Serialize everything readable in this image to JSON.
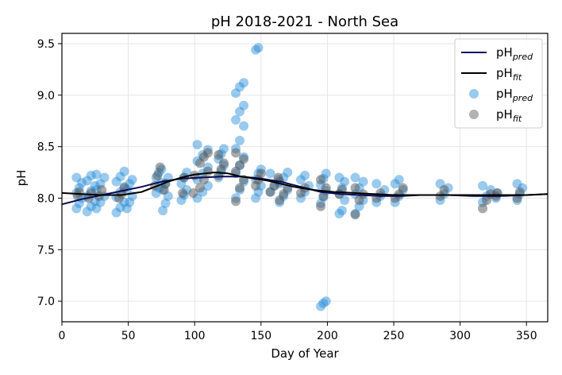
{
  "chart_data": {
    "type": "scatter",
    "title": "pH 2018-2021 - North Sea",
    "xlabel": "Day of Year",
    "ylabel": "pH",
    "xlim": [
      0,
      366
    ],
    "ylim": [
      6.8,
      9.6
    ],
    "xticks": [
      0,
      50,
      100,
      150,
      200,
      250,
      300,
      350
    ],
    "yticks": [
      7.0,
      7.5,
      8.0,
      8.5,
      9.0,
      9.5
    ],
    "ytick_labels": [
      "7.0",
      "7.5",
      "8.0",
      "8.5",
      "9.0",
      "9.5"
    ],
    "grid": true,
    "legend_position": "top-right",
    "legend": [
      {
        "base": "pH",
        "sub": "pred",
        "kind": "line",
        "color": "#0a0a5a"
      },
      {
        "base": "pH",
        "sub": "fit",
        "kind": "line",
        "color": "#000000"
      },
      {
        "base": "pH",
        "sub": "pred",
        "kind": "marker",
        "color": "#1f8ad6"
      },
      {
        "base": "pH",
        "sub": "fit",
        "kind": "marker",
        "color": "#555555"
      }
    ],
    "colors": {
      "pred_points": "#1f8ad6",
      "fit_points": "#555555",
      "pred_line": "#0a0a5a",
      "fit_line": "#000000"
    },
    "pred_line": {
      "x": [
        0,
        15,
        30,
        45,
        60,
        75,
        90,
        105,
        120,
        135,
        150,
        165,
        180,
        195,
        210,
        225,
        240,
        255,
        270,
        290,
        310,
        330,
        350,
        366
      ],
      "y": [
        7.94,
        7.99,
        8.03,
        8.07,
        8.11,
        8.16,
        8.19,
        8.2,
        8.21,
        8.21,
        8.19,
        8.16,
        8.11,
        8.06,
        8.04,
        8.03,
        8.02,
        8.02,
        8.03,
        8.03,
        8.02,
        8.02,
        8.03,
        8.04
      ]
    },
    "fit_line": {
      "x": [
        0,
        15,
        30,
        45,
        60,
        72,
        80,
        90,
        100,
        108,
        115,
        125,
        135,
        145,
        155,
        165,
        175,
        190,
        205,
        220,
        235,
        250,
        270,
        290,
        310,
        330,
        350,
        366
      ],
      "y": [
        8.05,
        8.04,
        8.03,
        8.03,
        8.06,
        8.12,
        8.16,
        8.2,
        8.23,
        8.24,
        8.25,
        8.24,
        8.21,
        8.19,
        8.17,
        8.14,
        8.11,
        8.08,
        8.06,
        8.05,
        8.04,
        8.03,
        8.03,
        8.03,
        8.03,
        8.03,
        8.03,
        8.04
      ]
    },
    "pred_clusters": [
      {
        "day": 13,
        "ys": [
          7.9,
          7.95,
          8.0,
          8.05,
          8.1,
          8.15,
          8.2
        ],
        "spread": 2
      },
      {
        "day": 22,
        "ys": [
          7.87,
          7.92,
          7.97,
          8.02,
          8.07,
          8.12,
          8.17,
          8.22
        ],
        "spread": 3
      },
      {
        "day": 29,
        "ys": [
          7.9,
          7.96,
          8.02,
          8.08,
          8.14,
          8.2,
          8.23
        ],
        "spread": 3
      },
      {
        "day": 44,
        "ys": [
          7.86,
          7.91,
          7.96,
          8.01,
          8.06,
          8.11,
          8.16,
          8.21,
          8.26
        ],
        "spread": 3
      },
      {
        "day": 51,
        "ys": [
          7.9,
          7.96,
          8.02,
          8.08,
          8.14,
          8.18
        ],
        "spread": 2
      },
      {
        "day": 73,
        "ys": [
          8.05,
          8.1,
          8.15,
          8.2,
          8.25,
          8.28
        ],
        "spread": 2
      },
      {
        "day": 78,
        "ys": [
          7.88,
          7.95,
          8.02,
          8.08,
          8.14,
          8.2
        ],
        "spread": 2
      },
      {
        "day": 92,
        "ys": [
          7.98,
          8.03,
          8.08,
          8.14,
          8.2,
          8.25
        ],
        "spread": 2
      },
      {
        "day": 106,
        "ys": [
          8.0,
          8.06,
          8.12,
          8.18,
          8.24,
          8.3,
          8.36,
          8.42,
          8.47,
          8.52
        ],
        "spread": 4
      },
      {
        "day": 120,
        "ys": [
          8.2,
          8.26,
          8.32,
          8.38,
          8.43,
          8.48
        ],
        "spread": 2
      },
      {
        "day": 134,
        "ys": [
          8.0,
          8.08,
          8.16,
          8.24,
          8.32,
          8.4,
          8.48,
          8.56,
          8.7,
          8.76,
          8.84,
          8.9,
          9.02,
          9.08,
          9.12
        ],
        "spread": 3
      },
      {
        "day": 148,
        "ys": [
          8.0,
          8.06,
          8.12,
          8.18,
          8.24,
          8.28,
          9.44,
          9.46
        ],
        "spread": 2
      },
      {
        "day": 160,
        "ys": [
          8.06,
          8.12,
          8.18,
          8.24
        ],
        "spread": 3
      },
      {
        "day": 167,
        "ys": [
          7.96,
          8.02,
          8.08,
          8.14,
          8.2,
          8.25
        ],
        "spread": 3
      },
      {
        "day": 183,
        "ys": [
          8.0,
          8.06,
          8.12,
          8.18,
          8.22
        ],
        "spread": 3
      },
      {
        "day": 197,
        "ys": [
          7.95,
          8.01,
          8.07,
          8.13,
          8.19,
          8.24,
          6.95,
          6.98,
          7.0
        ],
        "spread": 2
      },
      {
        "day": 211,
        "ys": [
          7.85,
          7.88,
          7.98,
          8.04,
          8.1,
          8.16,
          8.2
        ],
        "spread": 2
      },
      {
        "day": 224,
        "ys": [
          7.85,
          7.92,
          7.98,
          8.04,
          8.1,
          8.16,
          8.2
        ],
        "spread": 3
      },
      {
        "day": 240,
        "ys": [
          7.96,
          8.02,
          8.08,
          8.14
        ],
        "spread": 3
      },
      {
        "day": 254,
        "ys": [
          7.96,
          8.02,
          8.08,
          8.14,
          8.18
        ],
        "spread": 3
      },
      {
        "day": 288,
        "ys": [
          7.98,
          8.04,
          8.1,
          8.14
        ],
        "spread": 3
      },
      {
        "day": 320,
        "ys": [
          7.96,
          8.02,
          8.08,
          8.12
        ],
        "spread": 3
      },
      {
        "day": 328,
        "ys": [
          8.0,
          8.05
        ],
        "spread": 1
      },
      {
        "day": 345,
        "ys": [
          7.98,
          8.04,
          8.1,
          8.14
        ],
        "spread": 2
      }
    ],
    "fit_clusters": [
      {
        "day": 13,
        "ys": [
          8.02,
          8.06
        ],
        "spread": 1
      },
      {
        "day": 22,
        "ys": [
          8.0,
          8.05
        ],
        "spread": 2
      },
      {
        "day": 30,
        "ys": [
          8.02,
          8.08
        ],
        "spread": 2
      },
      {
        "day": 45,
        "ys": [
          8.0,
          8.04,
          8.1
        ],
        "spread": 2
      },
      {
        "day": 72,
        "ys": [
          8.12,
          8.22,
          8.3
        ],
        "spread": 2
      },
      {
        "day": 78,
        "ys": [
          8.08,
          8.14
        ],
        "spread": 1
      },
      {
        "day": 92,
        "ys": [
          8.05,
          8.2
        ],
        "spread": 1
      },
      {
        "day": 100,
        "ys": [
          8.05,
          8.22
        ],
        "spread": 1
      },
      {
        "day": 107,
        "ys": [
          8.1,
          8.18,
          8.26,
          8.34,
          8.4,
          8.44
        ],
        "spread": 3
      },
      {
        "day": 120,
        "ys": [
          8.22,
          8.28,
          8.34,
          8.42
        ],
        "spread": 2
      },
      {
        "day": 134,
        "ys": [
          7.97,
          8.1,
          8.18,
          8.26,
          8.32,
          8.38,
          8.44
        ],
        "spread": 3
      },
      {
        "day": 148,
        "ys": [
          8.12,
          8.18,
          8.24
        ],
        "spread": 2
      },
      {
        "day": 160,
        "ys": [
          8.06,
          8.12,
          8.2
        ],
        "spread": 3
      },
      {
        "day": 167,
        "ys": [
          7.98,
          8.04,
          8.1,
          8.16
        ],
        "spread": 3
      },
      {
        "day": 183,
        "ys": [
          8.05,
          8.1
        ],
        "spread": 3
      },
      {
        "day": 197,
        "ys": [
          7.92,
          8.02,
          8.1,
          8.18
        ],
        "spread": 2
      },
      {
        "day": 211,
        "ys": [
          8.04,
          8.08
        ],
        "spread": 2
      },
      {
        "day": 224,
        "ys": [
          7.84,
          7.98,
          8.04,
          8.1
        ],
        "spread": 3
      },
      {
        "day": 240,
        "ys": [
          8.0,
          8.05
        ],
        "spread": 3
      },
      {
        "day": 254,
        "ys": [
          8.0,
          8.04,
          8.1
        ],
        "spread": 3
      },
      {
        "day": 288,
        "ys": [
          8.02,
          8.08
        ],
        "spread": 3
      },
      {
        "day": 320,
        "ys": [
          7.9,
          7.98,
          8.04
        ],
        "spread": 3
      },
      {
        "day": 328,
        "ys": [
          8.02,
          8.05
        ],
        "spread": 1
      },
      {
        "day": 345,
        "ys": [
          8.0,
          8.06
        ],
        "spread": 2
      }
    ]
  }
}
